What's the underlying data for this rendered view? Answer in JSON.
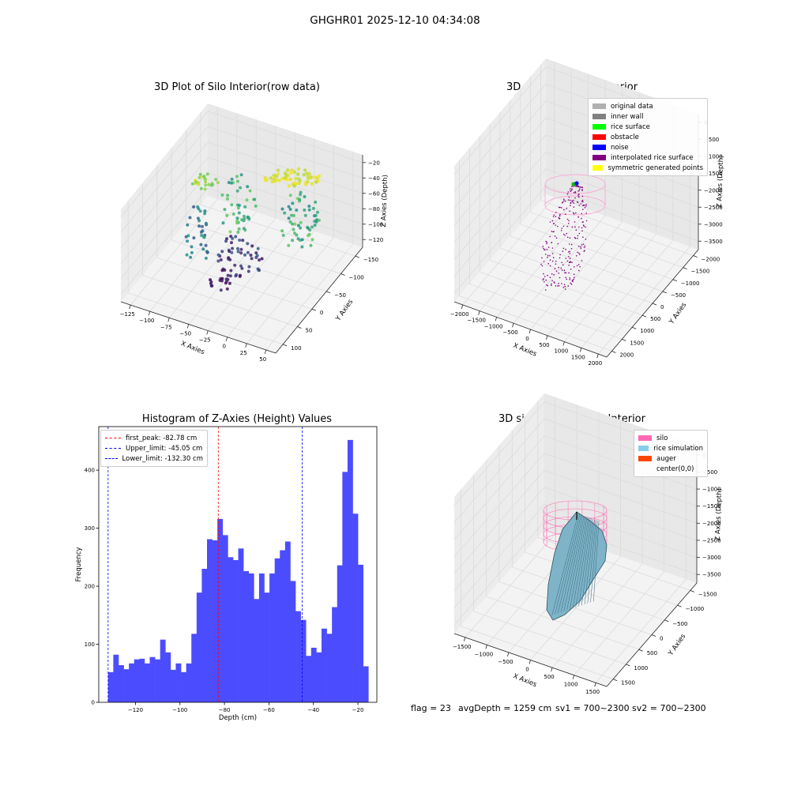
{
  "figure": {
    "suptitle": "GHGHR01 2025-12-10 04:34:08"
  },
  "status": {
    "flag": "flag = 23",
    "avg_depth": "avgDepth = 1259 cm",
    "sv1": "sv1 = 700~2300",
    "sv2": "sv2 = 700~2300"
  },
  "chart_data": [
    {
      "type": "scatter",
      "projection": "3d",
      "title": "3D Plot of Silo Interior(row data)",
      "xlabel": "X Axies",
      "ylabel": "Y Axies",
      "zlabel": "Z Axies (Depth)",
      "x_ticks": [
        "−125",
        "−100",
        "−75",
        "−50",
        "−25",
        "0",
        "25",
        "50"
      ],
      "y_ticks": [
        "100",
        "50",
        "0",
        "−50",
        "−100",
        "−150"
      ],
      "z_ticks": [
        "−20",
        "−40",
        "−60",
        "−80",
        "−100",
        "−120"
      ],
      "colormap": "viridis",
      "grid": true
    },
    {
      "type": "scatter",
      "projection": "3d",
      "title": "3D classify of Silo Interior",
      "xlabel": "X Axies",
      "ylabel": "Y Axies",
      "zlabel": "Z Axies (Depth)",
      "x_ticks": [
        "−2000",
        "−1500",
        "−1000",
        "−500",
        "0",
        "500",
        "1000",
        "1500",
        "2000"
      ],
      "y_ticks": [
        "2000",
        "1500",
        "1000",
        "500",
        "0",
        "−500",
        "−1000",
        "−1500",
        "−2000"
      ],
      "z_ticks": [
        "0",
        "−500",
        "−1000",
        "−1500",
        "−2000",
        "−2500",
        "−3000",
        "−3500"
      ],
      "legend": [
        {
          "label": "original data",
          "color": "#b0b0b0"
        },
        {
          "label": "inner wall",
          "color": "#808080"
        },
        {
          "label": "rice surface",
          "color": "#00ff00"
        },
        {
          "label": "obstacle",
          "color": "#ff0000"
        },
        {
          "label": "noise",
          "color": "#0000ff"
        },
        {
          "label": "interpolated rice surface",
          "color": "#800080"
        },
        {
          "label": "symmetric generated points",
          "color": "#ffff00"
        }
      ],
      "legend_position": "upper-right",
      "grid": true
    },
    {
      "type": "bar",
      "title": "Histogram of Z-Axies (Height) Values",
      "xlabel": "Depth (cm)",
      "ylabel": "Frequency",
      "bar_color": "#4c4cff",
      "xlim": [
        -136.5,
        -11.5
      ],
      "ylim": [
        0,
        475
      ],
      "x_ticks": [
        -120,
        -100,
        -80,
        -60,
        -40,
        -20
      ],
      "y_ticks": [
        0,
        100,
        200,
        300,
        400
      ],
      "x_tick_labels": [
        "−120",
        "−100",
        "−80",
        "−60",
        "−40",
        "−20"
      ],
      "y_tick_labels": [
        "0",
        "100",
        "200",
        "300",
        "400"
      ],
      "bin_start": -132.3,
      "bin_width": 2.34,
      "values": [
        52,
        82,
        64,
        57,
        67,
        74,
        75,
        67,
        78,
        74,
        108,
        86,
        56,
        67,
        52,
        67,
        118,
        189,
        230,
        281,
        279,
        316,
        288,
        250,
        245,
        265,
        226,
        222,
        178,
        222,
        189,
        222,
        248,
        262,
        277,
        209,
        157,
        142,
        80,
        94,
        86,
        127,
        118,
        164,
        236,
        397,
        452,
        325,
        237,
        62
      ],
      "vlines": [
        {
          "label": "first_peak: -82.78 cm",
          "x": -82.78,
          "color": "#ff0000"
        },
        {
          "label": "Upper_limit: -45.05 cm",
          "x": -45.05,
          "color": "#0000ff"
        },
        {
          "label": "Lower_limit: -132.30 cm",
          "x": -132.3,
          "color": "#0000ff"
        }
      ],
      "legend_position": "upper-left"
    },
    {
      "type": "surface",
      "projection": "3d",
      "title": "3D simulation of Silo Interior",
      "xlabel": "X Axies",
      "ylabel": "Y Axies",
      "zlabel": "Z Axies (Depth)",
      "x_ticks": [
        "−1500",
        "−1000",
        "−500",
        "0",
        "500",
        "1000",
        "1500"
      ],
      "y_ticks": [
        "1500",
        "1000",
        "500",
        "0",
        "−500",
        "−1000",
        "−1500"
      ],
      "z_ticks": [
        "0",
        "−500",
        "−1000",
        "−1500",
        "−2000",
        "−2500",
        "−3000",
        "−3500"
      ],
      "legend": [
        {
          "label": "silo",
          "color": "#ff69b4"
        },
        {
          "label": "rice simulation",
          "color": "#87ceeb"
        },
        {
          "label": "auger",
          "color": "#ff4500"
        },
        {
          "label": "center(0,0)",
          "color": ""
        }
      ],
      "legend_position": "upper-right",
      "grid": true
    }
  ]
}
